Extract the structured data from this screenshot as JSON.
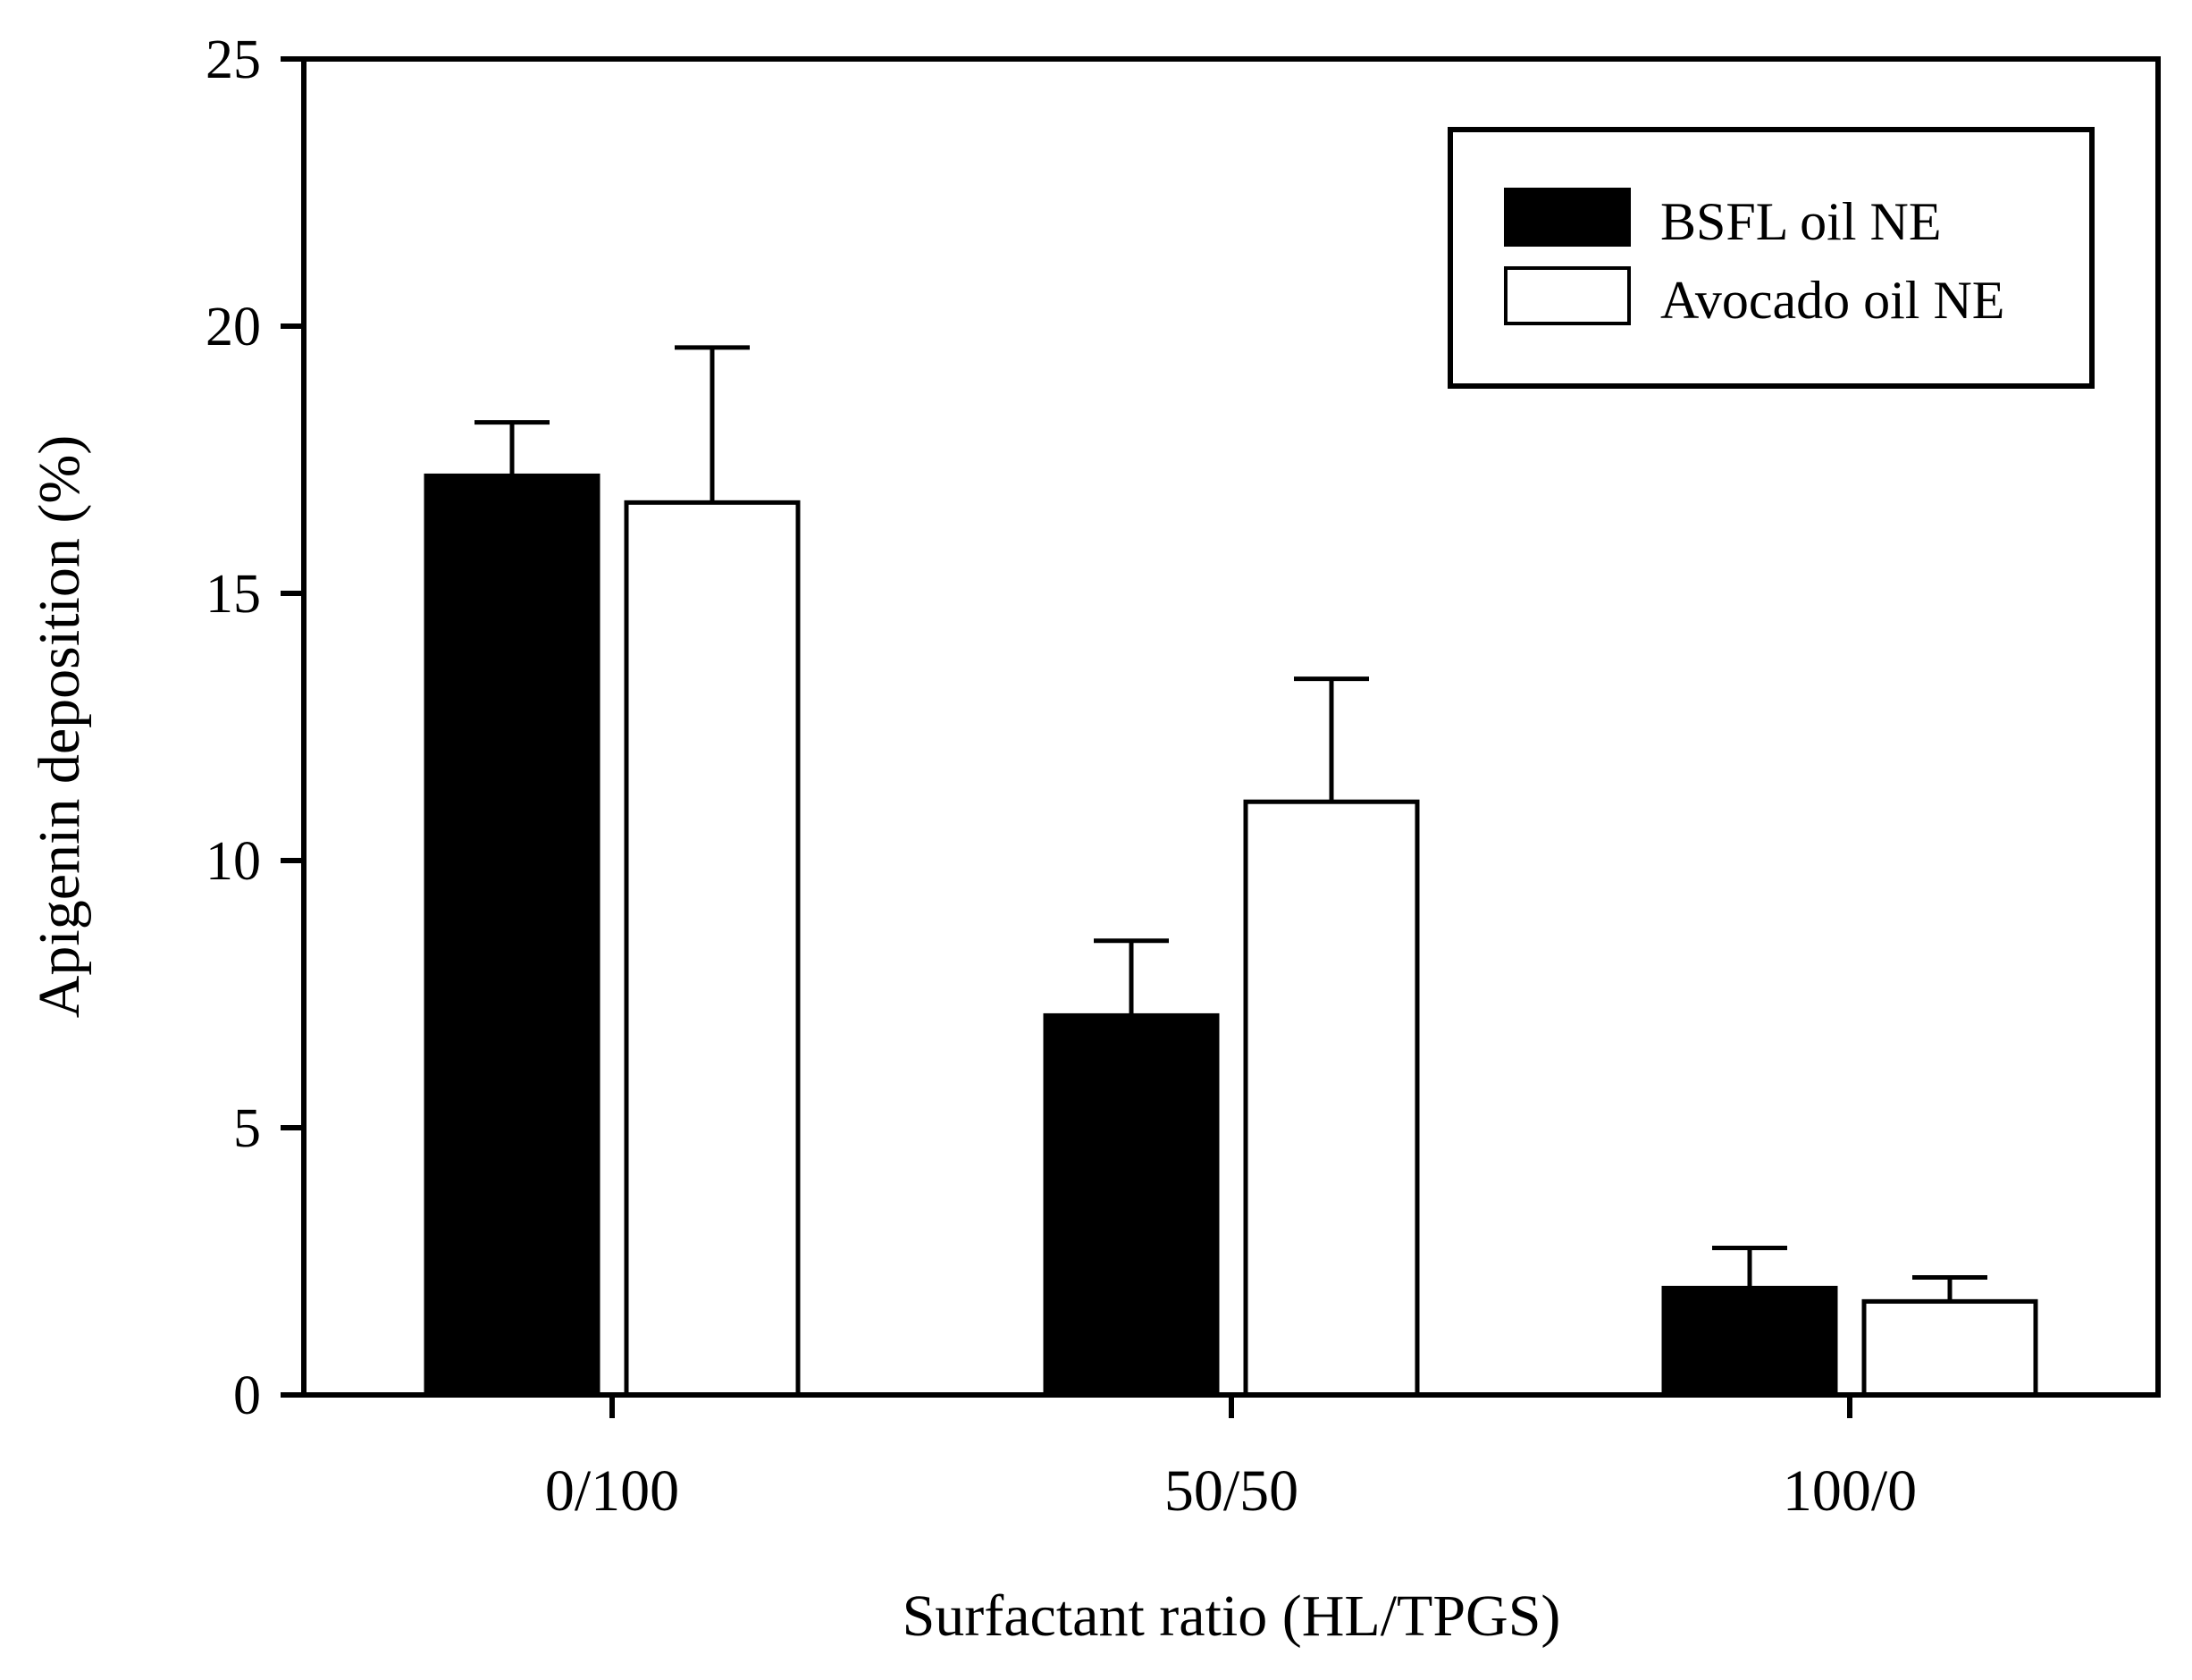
{
  "chart_data": {
    "type": "bar",
    "xlabel": "Surfactant ratio (HL/TPGS)",
    "ylabel": "Apigenin deposition (%)",
    "ylim": [
      0,
      25
    ],
    "yticks": [
      "0",
      "5",
      "10",
      "15",
      "20",
      "25"
    ],
    "categories": [
      "0/100",
      "50/50",
      "100/0"
    ],
    "series": [
      {
        "name": "BSFL oil NE",
        "color": "#000000",
        "fill": "solid",
        "values": [
          17.2,
          7.1,
          2.0
        ],
        "errors": [
          1.0,
          1.4,
          0.75
        ]
      },
      {
        "name": "Avocado oil NE",
        "color": "#ffffff",
        "fill": "open",
        "values": [
          16.7,
          11.1,
          1.75
        ],
        "errors": [
          2.9,
          2.3,
          0.45
        ]
      }
    ],
    "legend": "top-right",
    "grid": false
  }
}
